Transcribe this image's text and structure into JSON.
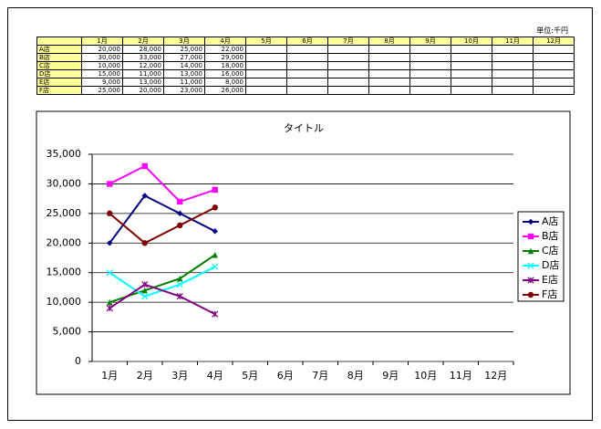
{
  "unit": "単位:千円",
  "table": {
    "header": [
      "1月",
      "2月",
      "3月",
      "4月",
      "5月",
      "6月",
      "7月",
      "8月",
      "9月",
      "10月",
      "11月",
      "12月"
    ],
    "rows": [
      {
        "label": "A店",
        "values": [
          "20,000",
          "28,000",
          "25,000",
          "22,000"
        ]
      },
      {
        "label": "B店",
        "values": [
          "30,000",
          "33,000",
          "27,000",
          "29,000"
        ]
      },
      {
        "label": "C店",
        "values": [
          "10,000",
          "12,000",
          "14,000",
          "18,000"
        ]
      },
      {
        "label": "D店",
        "values": [
          "15,000",
          "11,000",
          "13,000",
          "16,000"
        ]
      },
      {
        "label": "E店",
        "values": [
          "9,000",
          "13,000",
          "11,000",
          "8,000"
        ]
      },
      {
        "label": "F店",
        "values": [
          "25,000",
          "20,000",
          "23,000",
          "26,000"
        ]
      }
    ]
  },
  "chart_data": {
    "type": "line",
    "title": "タイトル",
    "categories": [
      "1月",
      "2月",
      "3月",
      "4月",
      "5月",
      "6月",
      "7月",
      "8月",
      "9月",
      "10月",
      "11月",
      "12月"
    ],
    "ylim": [
      0,
      35000
    ],
    "yticks": [
      0,
      {
        "value": 5000,
        "label": "5,000"
      },
      {
        "value": 10000,
        "label": "10,000"
      },
      {
        "value": 15000,
        "label": "15,000"
      },
      {
        "value": 20000,
        "label": "20,000"
      },
      {
        "value": 25000,
        "label": "25,000"
      },
      {
        "value": 30000,
        "label": "30,000"
      },
      {
        "value": 35000,
        "label": "35,000"
      }
    ],
    "grid": true,
    "legend": "right",
    "series": [
      {
        "name": "A店",
        "color": "#000080",
        "marker": "diamond",
        "values": [
          20000,
          28000,
          25000,
          22000,
          null,
          null,
          null,
          null,
          null,
          null,
          null,
          null
        ]
      },
      {
        "name": "B店",
        "color": "#ff00ff",
        "marker": "square",
        "values": [
          30000,
          33000,
          27000,
          29000,
          null,
          null,
          null,
          null,
          null,
          null,
          null,
          null
        ]
      },
      {
        "name": "C店",
        "color": "#008000",
        "marker": "triangle",
        "values": [
          10000,
          12000,
          14000,
          18000,
          null,
          null,
          null,
          null,
          null,
          null,
          null,
          null
        ]
      },
      {
        "name": "D店",
        "color": "#00ffff",
        "marker": "x",
        "values": [
          15000,
          11000,
          13000,
          16000,
          null,
          null,
          null,
          null,
          null,
          null,
          null,
          null
        ]
      },
      {
        "name": "E店",
        "color": "#800080",
        "marker": "star",
        "values": [
          9000,
          13000,
          11000,
          8000,
          null,
          null,
          null,
          null,
          null,
          null,
          null,
          null
        ]
      },
      {
        "name": "F店",
        "color": "#800000",
        "marker": "circle",
        "values": [
          25000,
          20000,
          23000,
          26000,
          null,
          null,
          null,
          null,
          null,
          null,
          null,
          null
        ]
      }
    ]
  }
}
